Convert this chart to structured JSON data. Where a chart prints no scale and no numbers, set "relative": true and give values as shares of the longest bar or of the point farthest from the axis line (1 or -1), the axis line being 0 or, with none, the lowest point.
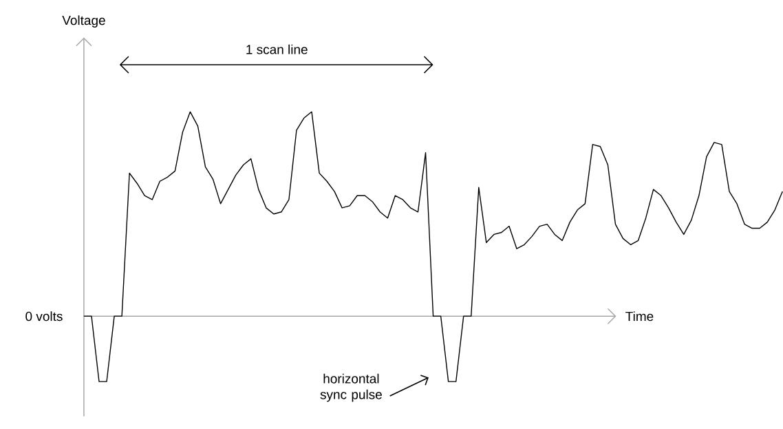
{
  "chart_data": {
    "type": "line",
    "relative": true,
    "xlabel": "Time",
    "color": "#000000",
    "categories": [
      null,
      null,
      null,
      null,
      null,
      null,
      null,
      null,
      null,
      null,
      null,
      null,
      null,
      null,
      null,
      null,
      null,
      null,
      null,
      null,
      null,
      null,
      null,
      null,
      null,
      null,
      null,
      null,
      null,
      null,
      null,
      null,
      null,
      null,
      null,
      null,
      null,
      null,
      null,
      null,
      null,
      null,
      null,
      null,
      null,
      null,
      null,
      null,
      null,
      null,
      null,
      null,
      null,
      null,
      null,
      null,
      null,
      null,
      null,
      null,
      null,
      null,
      null,
      null,
      null,
      null,
      null,
      null,
      null,
      null,
      null,
      null,
      null,
      null,
      null,
      null,
      null,
      null,
      null,
      null,
      null,
      null,
      null,
      null,
      null,
      null,
      null,
      null,
      null,
      null,
      null,
      null,
      null
    ],
    "values": [
      0,
      0,
      -0.32,
      -0.32,
      0,
      0,
      0.7,
      0.65,
      0.59,
      0.57,
      0.66,
      0.68,
      0.71,
      0.9,
      1,
      0.93,
      0.73,
      0.67,
      0.55,
      0.62,
      0.69,
      0.74,
      0.77,
      0.62,
      0.53,
      0.5,
      0.51,
      0.57,
      0.91,
      0.97,
      1,
      0.7,
      0.66,
      0.61,
      0.53,
      0.54,
      0.59,
      0.59,
      0.56,
      0.51,
      0.48,
      0.59,
      0.57,
      0.53,
      0.51,
      0.8,
      0,
      0,
      -0.32,
      -0.32,
      0,
      0,
      0.63,
      0.36,
      0.4,
      0.41,
      0.44,
      0.33,
      0.35,
      0.39,
      0.44,
      0.45,
      0.4,
      0.37,
      0.46,
      0.52,
      0.55,
      0.84,
      0.83,
      0.74,
      0.45,
      0.38,
      0.35,
      0.37,
      0.48,
      0.62,
      0.59,
      0.53,
      0.46,
      0.4,
      0.47,
      0.59,
      0.78,
      0.85,
      0.84,
      0.61,
      0.55,
      0.45,
      0.43,
      0.43,
      0.46,
      0.52,
      0.61
    ],
    "annotations": [
      "1 scan line",
      "horizontal sync pulse",
      "0 volts",
      "Voltage"
    ]
  }
}
